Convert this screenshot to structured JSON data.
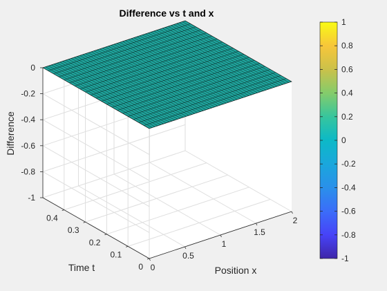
{
  "chart_data": {
    "type": "surface",
    "title": "Difference vs t and x",
    "xlabel": "Position x",
    "ylabel": "Time t",
    "zlabel": "Difference",
    "x_range": [
      0,
      2
    ],
    "y_range": [
      0,
      0.5
    ],
    "zlim": [
      -1,
      0
    ],
    "x_ticks": [
      "0",
      "0.5",
      "1",
      "1.5",
      "2"
    ],
    "y_ticks": [
      "0",
      "0.1",
      "0.2",
      "0.3",
      "0.4"
    ],
    "z_ticks": [
      "0",
      "-0.2",
      "-0.4",
      "-0.6",
      "-0.8",
      "-1"
    ],
    "surface_value": 0,
    "grid": true,
    "colormap": "parula",
    "surface_color": "#1fa39b",
    "colorbar": {
      "ticks": [
        "1",
        "0.8",
        "0.6",
        "0.4",
        "0.2",
        "0",
        "-0.2",
        "-0.4",
        "-0.6",
        "-0.8",
        "-1"
      ],
      "range": [
        -1,
        1
      ]
    }
  }
}
